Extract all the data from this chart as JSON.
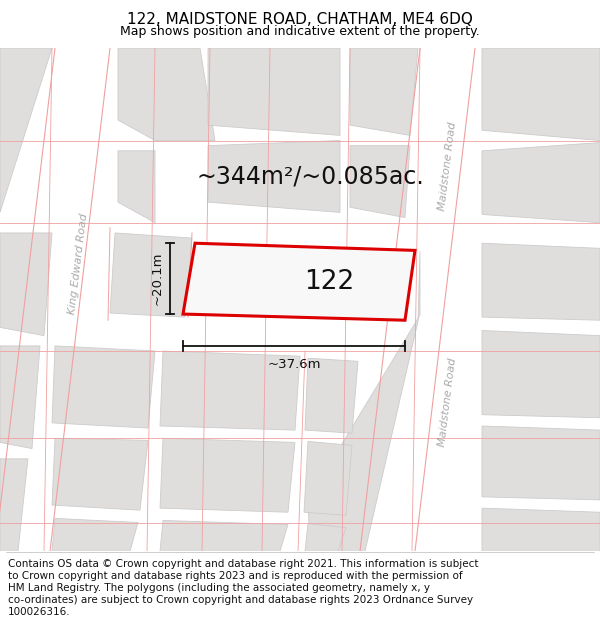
{
  "title": "122, MAIDSTONE ROAD, CHATHAM, ME4 6DQ",
  "subtitle": "Map shows position and indicative extent of the property.",
  "footer_lines": [
    "Contains OS data © Crown copyright and database right 2021. This information is subject",
    "to Crown copyright and database rights 2023 and is reproduced with the permission of",
    "HM Land Registry. The polygons (including the associated geometry, namely x, y",
    "co-ordinates) are subject to Crown copyright and database rights 2023 Ordnance Survey",
    "100026316."
  ],
  "area_text": "~344m²/~0.085ac.",
  "property_label": "122",
  "dim_width": "~37.6m",
  "dim_height": "~20.1m",
  "bg_color": "#f8f8f8",
  "building_fill": "#e0dedd",
  "building_edge": "#cccccc",
  "parcel_line_color": "#f0a0a0",
  "road_fill": "#ffffff",
  "plot_edge_color": "#dd0000",
  "plot_fill": "#f8f8f8",
  "road_label_color": "#aaaaaa",
  "dim_color": "#111111",
  "title_fontsize": 11,
  "subtitle_fontsize": 9,
  "footer_fontsize": 7.5,
  "area_fontsize": 17,
  "label_fontsize": 19,
  "dim_fontsize": 9.5
}
